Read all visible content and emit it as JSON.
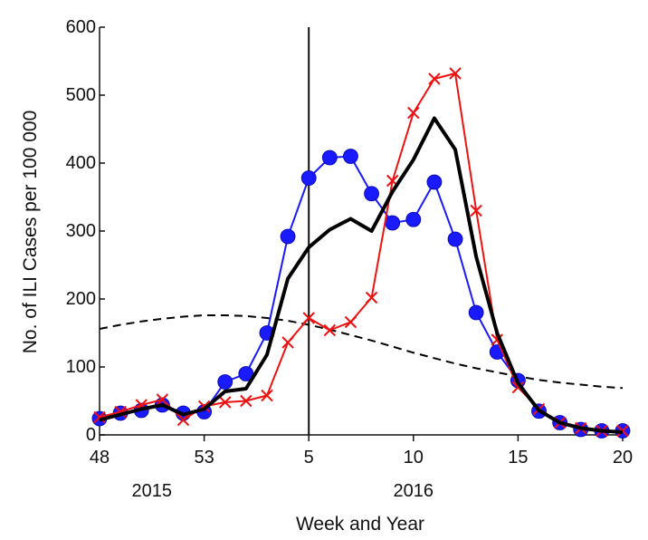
{
  "chart_data": {
    "type": "line",
    "xlabel": "Week and Year",
    "ylabel": "No. of ILI Cases per 100 000",
    "ylim": [
      0,
      600
    ],
    "yticks": [
      0,
      100,
      200,
      300,
      400,
      500,
      600
    ],
    "xticks": [
      {
        "index": 0,
        "label": "48"
      },
      {
        "index": 5,
        "label": "53"
      },
      {
        "index": 10,
        "label": "5"
      },
      {
        "index": 15,
        "label": "10"
      },
      {
        "index": 20,
        "label": "15"
      },
      {
        "index": 25,
        "label": "20"
      }
    ],
    "year_labels": [
      {
        "index": 2.5,
        "label": "2015"
      },
      {
        "index": 15,
        "label": "2016"
      }
    ],
    "vertical_line_index": 10,
    "weeks": [
      "48",
      "49",
      "50",
      "51",
      "52",
      "53",
      "1",
      "2",
      "3",
      "4",
      "5",
      "6",
      "7",
      "8",
      "9",
      "10",
      "11",
      "12",
      "13",
      "14",
      "15",
      "16",
      "17",
      "18",
      "19",
      "20"
    ],
    "series": [
      {
        "key": "blue",
        "color": "#1a1aff",
        "marker": "circle",
        "values": [
          24,
          32,
          36,
          44,
          32,
          34,
          78,
          90,
          150,
          292,
          378,
          408,
          410,
          355,
          312,
          317,
          372,
          288,
          180,
          122,
          80,
          35,
          18,
          8,
          6,
          6
        ]
      },
      {
        "key": "red",
        "color": "#ee1111",
        "marker": "x",
        "values": [
          26,
          34,
          44,
          52,
          22,
          42,
          48,
          50,
          58,
          136,
          172,
          154,
          166,
          202,
          374,
          474,
          524,
          532,
          330,
          140,
          70,
          38,
          18,
          10,
          6,
          6
        ]
      },
      {
        "key": "black",
        "color": "#000000",
        "marker": "none",
        "values": [
          22,
          30,
          38,
          44,
          30,
          38,
          64,
          68,
          118,
          230,
          276,
          302,
          318,
          300,
          358,
          405,
          466,
          420,
          262,
          150,
          76,
          36,
          18,
          10,
          6,
          4
        ]
      },
      {
        "key": "threshold",
        "color": "#000000",
        "marker": "none",
        "dashed": true,
        "values": [
          156,
          162,
          167,
          171,
          174,
          176,
          176,
          175,
          172,
          168,
          162,
          155,
          147,
          139,
          130,
          121,
          113,
          105,
          98,
          92,
          86,
          81,
          77,
          74,
          71,
          69
        ]
      }
    ]
  }
}
